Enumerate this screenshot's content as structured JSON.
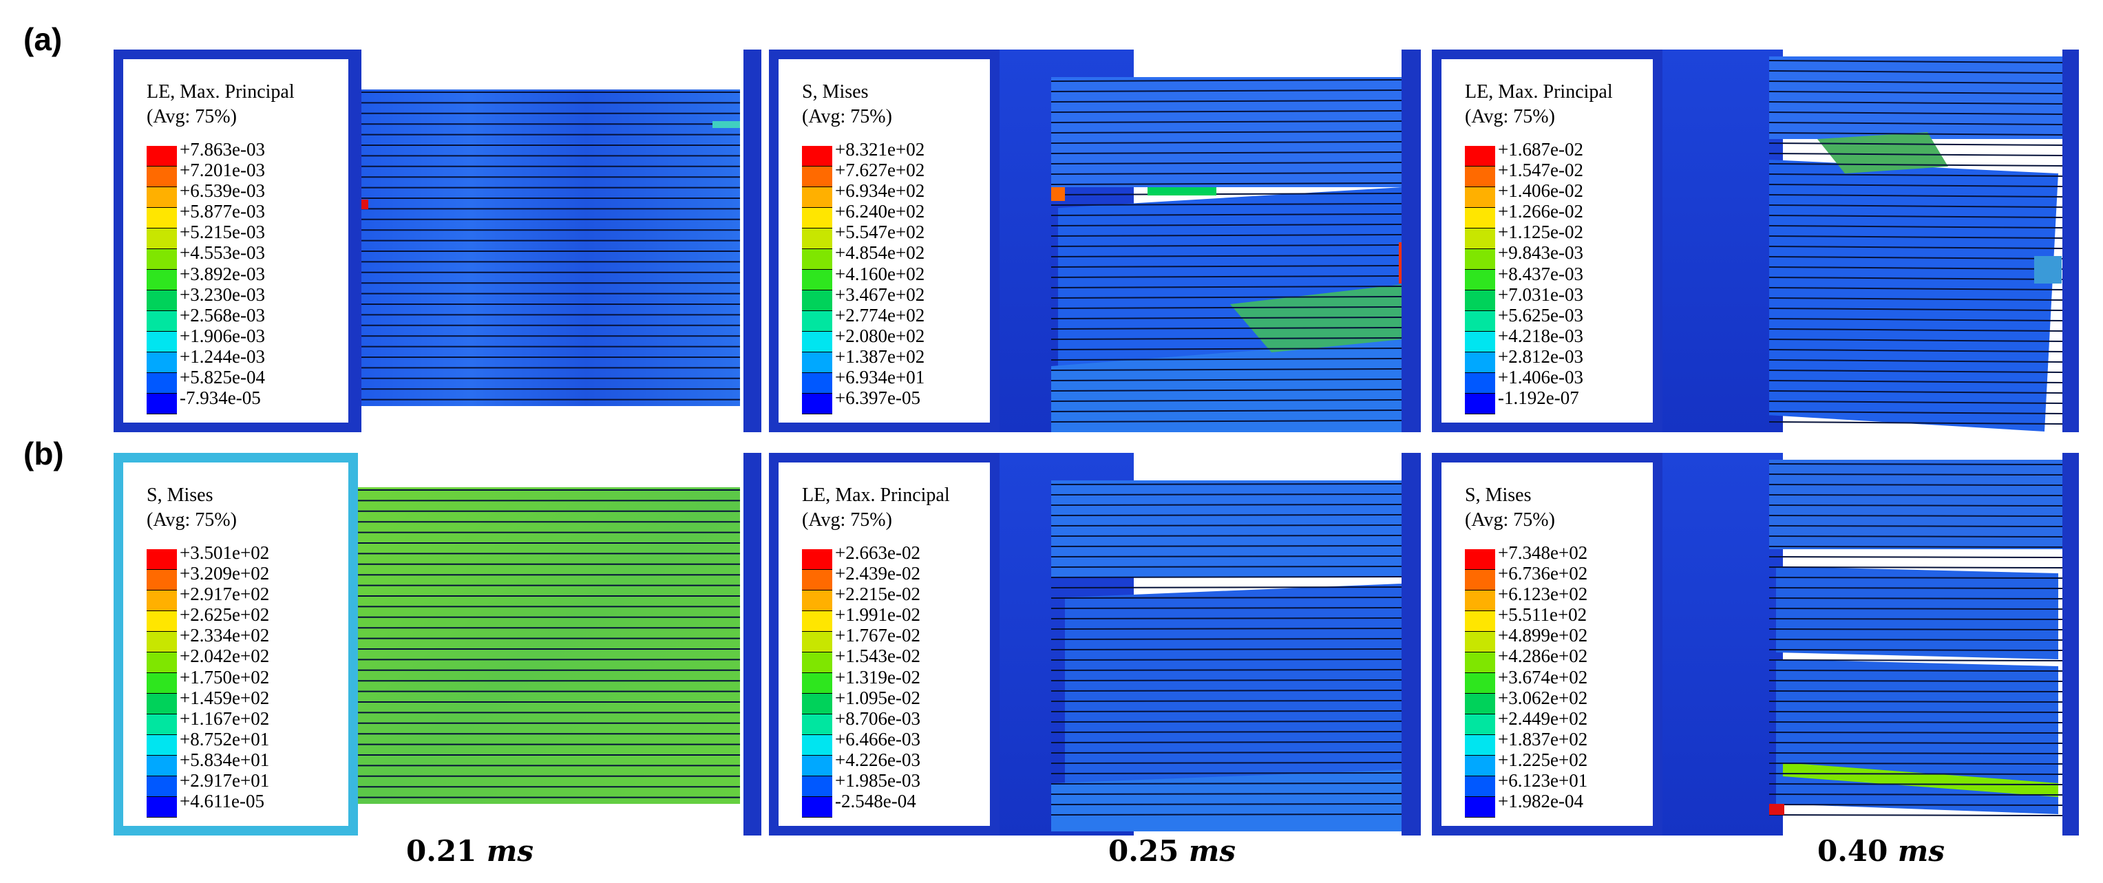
{
  "row_labels": {
    "a": "(a)",
    "b": "(b)"
  },
  "times": [
    {
      "num": "0.21",
      "unit": "ms"
    },
    {
      "num": "0.25",
      "unit": "ms"
    },
    {
      "num": "0.40",
      "unit": "ms"
    }
  ],
  "colors": {
    "frame_blue": "#1a36c4",
    "colormap": [
      "#0000ff",
      "#0058ff",
      "#00a8ff",
      "#00e5f0",
      "#00e6a0",
      "#00d25a",
      "#2ee61e",
      "#7fe600",
      "#c8e600",
      "#ffe600",
      "#ffb000",
      "#ff6a00",
      "#ff0000"
    ]
  },
  "legends": {
    "a1": {
      "title": "LE, Max. Principal",
      "avg": "(Avg: 75%)",
      "ticks": [
        "+7.863e-03",
        "+7.201e-03",
        "+6.539e-03",
        "+5.877e-03",
        "+5.215e-03",
        "+4.553e-03",
        "+3.892e-03",
        "+3.230e-03",
        "+2.568e-03",
        "+1.906e-03",
        "+1.244e-03",
        "+5.825e-04",
        "-7.934e-05"
      ]
    },
    "a2": {
      "title": "S, Mises",
      "avg": "(Avg: 75%)",
      "ticks": [
        "+8.321e+02",
        "+7.627e+02",
        "+6.934e+02",
        "+6.240e+02",
        "+5.547e+02",
        "+4.854e+02",
        "+4.160e+02",
        "+3.467e+02",
        "+2.774e+02",
        "+2.080e+02",
        "+1.387e+02",
        "+6.934e+01",
        "+6.397e-05"
      ]
    },
    "a3": {
      "title": "LE, Max. Principal",
      "avg": "(Avg: 75%)",
      "ticks": [
        "+1.687e-02",
        "+1.547e-02",
        "+1.406e-02",
        "+1.266e-02",
        "+1.125e-02",
        "+9.843e-03",
        "+8.437e-03",
        "+7.031e-03",
        "+5.625e-03",
        "+4.218e-03",
        "+2.812e-03",
        "+1.406e-03",
        "-1.192e-07"
      ]
    },
    "b1": {
      "title": "S, Mises",
      "avg": "(Avg: 75%)",
      "ticks": [
        "+3.501e+02",
        "+3.209e+02",
        "+2.917e+02",
        "+2.625e+02",
        "+2.334e+02",
        "+2.042e+02",
        "+1.750e+02",
        "+1.459e+02",
        "+1.167e+02",
        "+8.752e+01",
        "+5.834e+01",
        "+2.917e+01",
        "+4.611e-05"
      ]
    },
    "b2": {
      "title": "LE, Max. Principal",
      "avg": "(Avg: 75%)",
      "ticks": [
        "+2.663e-02",
        "+2.439e-02",
        "+2.215e-02",
        "+1.991e-02",
        "+1.767e-02",
        "+1.543e-02",
        "+1.319e-02",
        "+1.095e-02",
        "+8.706e-03",
        "+6.466e-03",
        "+4.226e-03",
        "+1.985e-03",
        "-2.548e-04"
      ]
    },
    "b3": {
      "title": "S, Mises",
      "avg": "(Avg: 75%)",
      "ticks": [
        "+7.348e+02",
        "+6.736e+02",
        "+6.123e+02",
        "+5.511e+02",
        "+4.899e+02",
        "+4.286e+02",
        "+3.674e+02",
        "+3.062e+02",
        "+2.449e+02",
        "+1.837e+02",
        "+1.225e+02",
        "+6.123e+01",
        "+1.982e-04"
      ]
    }
  }
}
